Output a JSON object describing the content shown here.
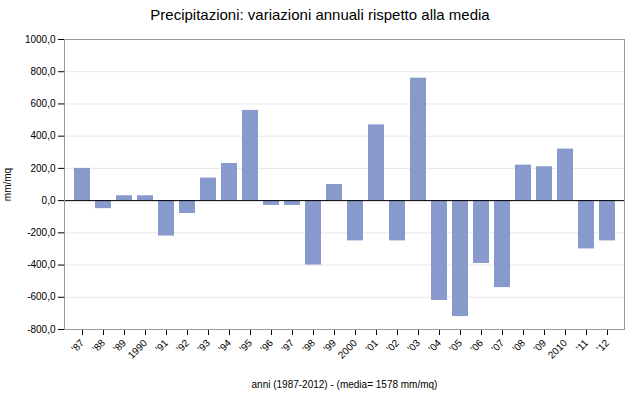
{
  "chart_data": {
    "type": "bar",
    "title": "Precipitazioni: variazioni annuali rispetto alla media",
    "xlabel": "anni (1987-2012) - (media= 1578 mm/mq)",
    "ylabel": "mm/mq",
    "categories": [
      "'87",
      "'88",
      "'89",
      "1990",
      "'91",
      "'92",
      "'93",
      "'94",
      "'95",
      "'96",
      "'97",
      "'98",
      "'99",
      "2000",
      "'01",
      "'02",
      "'03",
      "'04",
      "'05",
      "'06",
      "'07",
      "'08",
      "'09",
      "2010",
      "'11",
      "'12"
    ],
    "values": [
      200,
      -50,
      30,
      30,
      -220,
      -80,
      140,
      230,
      560,
      -30,
      -30,
      -400,
      100,
      -250,
      470,
      -250,
      760,
      -620,
      -720,
      -390,
      -540,
      220,
      210,
      320,
      -300,
      -250
    ],
    "color": "#8899cc",
    "ylim": [
      -800,
      1000
    ],
    "yticks": [
      {
        "value": -800,
        "label": "-800,0"
      },
      {
        "value": -600,
        "label": "-600,0"
      },
      {
        "value": -400,
        "label": "-400,0"
      },
      {
        "value": -200,
        "label": "-200,0"
      },
      {
        "value": 0,
        "label": "0,0"
      },
      {
        "value": 200,
        "label": "200,0"
      },
      {
        "value": 400,
        "label": "400,0"
      },
      {
        "value": 600,
        "label": "600,0"
      },
      {
        "value": 800,
        "label": "800,0"
      },
      {
        "value": 1000,
        "label": "1000,0"
      }
    ],
    "grid": true
  }
}
